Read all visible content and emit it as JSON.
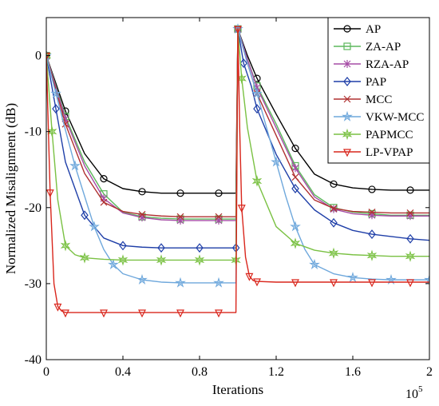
{
  "chart_data": {
    "type": "line",
    "title": "",
    "xlabel": "Iterations",
    "x_multiplier_label": "10",
    "x_multiplier_exponent": "5",
    "ylabel": "Normalized Misalignment (dB)",
    "xlim": [
      0,
      2
    ],
    "ylim": [
      -40,
      5
    ],
    "xticks": [
      0,
      0.4,
      0.8,
      1.2,
      1.6,
      2
    ],
    "xtick_labels": [
      "0",
      "0.4",
      "0.8",
      "1.2",
      "1.6",
      "2"
    ],
    "yticks": [
      0,
      -10,
      -20,
      -30,
      -40
    ],
    "ytick_labels": [
      "0",
      "-10",
      "-20",
      "-30",
      "-40"
    ],
    "grid": false,
    "legend_position": "top-right",
    "series": [
      {
        "name": "AP",
        "color": "#000000",
        "marker": "circle",
        "x": [
          0,
          0.1,
          0.2,
          0.3,
          0.4,
          0.5,
          0.6,
          0.7,
          0.8,
          0.9,
          0.99,
          1.0,
          1.05,
          1.1,
          1.2,
          1.3,
          1.4,
          1.5,
          1.6,
          1.7,
          1.8,
          1.9,
          2.0
        ],
        "y": [
          0,
          -7.3,
          -12.9,
          -16.2,
          -17.5,
          -17.9,
          -18.1,
          -18.1,
          -18.1,
          -18.1,
          -18.1,
          3.5,
          0,
          -3,
          -7.7,
          -12.2,
          -15.6,
          -16.9,
          -17.4,
          -17.6,
          -17.7,
          -17.7,
          -17.7
        ]
      },
      {
        "name": "ZA-AP",
        "color": "#5cb85c",
        "marker": "square",
        "x": [
          0,
          0.1,
          0.2,
          0.3,
          0.4,
          0.5,
          0.6,
          0.7,
          0.8,
          0.9,
          0.99,
          1.0,
          1.05,
          1.1,
          1.2,
          1.3,
          1.4,
          1.5,
          1.6,
          1.7,
          1.8,
          1.9,
          2.0
        ],
        "y": [
          0,
          -8,
          -14,
          -18.2,
          -20.6,
          -21.2,
          -21.4,
          -21.5,
          -21.5,
          -21.5,
          -21.5,
          3.5,
          -0.5,
          -4,
          -9,
          -14.5,
          -18.3,
          -20,
          -20.6,
          -20.8,
          -21,
          -21,
          -21
        ]
      },
      {
        "name": "RZA-AP",
        "color": "#a64ca6",
        "marker": "asterisk",
        "x": [
          0,
          0.1,
          0.2,
          0.3,
          0.4,
          0.5,
          0.6,
          0.7,
          0.8,
          0.9,
          0.99,
          1.0,
          1.05,
          1.1,
          1.2,
          1.3,
          1.4,
          1.5,
          1.6,
          1.7,
          1.8,
          1.9,
          2.0
        ],
        "y": [
          0,
          -8.3,
          -14.5,
          -18.8,
          -20.7,
          -21.3,
          -21.6,
          -21.7,
          -21.7,
          -21.7,
          -21.7,
          3.5,
          -0.5,
          -4.2,
          -9.5,
          -14.8,
          -18.6,
          -20.2,
          -20.8,
          -21,
          -21.1,
          -21.1,
          -21.1
        ]
      },
      {
        "name": "PAP",
        "color": "#1f3fa8",
        "marker": "diamond",
        "x": [
          0,
          0.05,
          0.1,
          0.2,
          0.3,
          0.4,
          0.5,
          0.6,
          0.7,
          0.8,
          0.9,
          0.99,
          1.0,
          1.03,
          1.07,
          1.1,
          1.2,
          1.3,
          1.4,
          1.5,
          1.6,
          1.7,
          1.8,
          1.9,
          2.0
        ],
        "y": [
          0,
          -7,
          -14,
          -21,
          -24,
          -25,
          -25.2,
          -25.3,
          -25.3,
          -25.3,
          -25.3,
          -25.3,
          3.5,
          -1,
          -4,
          -7,
          -13,
          -17.5,
          -20.3,
          -22,
          -23,
          -23.5,
          -23.8,
          -24.1,
          -24.3
        ]
      },
      {
        "name": "MCC",
        "color": "#b03030",
        "marker": "x",
        "x": [
          0,
          0.1,
          0.2,
          0.3,
          0.4,
          0.5,
          0.6,
          0.7,
          0.8,
          0.9,
          0.99,
          1.0,
          1.05,
          1.1,
          1.2,
          1.3,
          1.4,
          1.5,
          1.6,
          1.7,
          1.8,
          1.9,
          2.0
        ],
        "y": [
          0,
          -9,
          -15.5,
          -19.3,
          -20.5,
          -20.9,
          -21.1,
          -21.2,
          -21.2,
          -21.2,
          -21.2,
          3.5,
          -1,
          -5,
          -10.5,
          -16,
          -19,
          -20.1,
          -20.5,
          -20.6,
          -20.7,
          -20.7,
          -20.7
        ]
      },
      {
        "name": "VKW-MCC",
        "color": "#6fa8dc",
        "marker": "star",
        "x": [
          0,
          0.05,
          0.1,
          0.15,
          0.2,
          0.25,
          0.3,
          0.35,
          0.4,
          0.5,
          0.6,
          0.7,
          0.8,
          0.9,
          0.99,
          1.0,
          1.05,
          1.1,
          1.15,
          1.2,
          1.25,
          1.3,
          1.35,
          1.4,
          1.5,
          1.6,
          1.7,
          1.8,
          1.9,
          2.0
        ],
        "y": [
          0,
          -5,
          -9.8,
          -14.5,
          -18.5,
          -22.5,
          -25.5,
          -27.5,
          -28.7,
          -29.5,
          -29.8,
          -29.9,
          -29.9,
          -29.9,
          -29.9,
          3.5,
          -1,
          -5,
          -9.5,
          -14,
          -18.5,
          -22.5,
          -25.5,
          -27.5,
          -28.7,
          -29.2,
          -29.4,
          -29.5,
          -29.5,
          -29.5
        ]
      },
      {
        "name": "PAPMCC",
        "color": "#7ac143",
        "marker": "star6",
        "x": [
          0,
          0.03,
          0.06,
          0.1,
          0.15,
          0.2,
          0.3,
          0.4,
          0.5,
          0.6,
          0.7,
          0.8,
          0.9,
          0.99,
          1.0,
          1.02,
          1.05,
          1.1,
          1.2,
          1.3,
          1.4,
          1.5,
          1.6,
          1.7,
          1.8,
          1.9,
          2.0
        ],
        "y": [
          0,
          -10,
          -19,
          -25,
          -26.2,
          -26.6,
          -26.8,
          -26.9,
          -26.9,
          -26.9,
          -26.9,
          -26.9,
          -26.9,
          -26.9,
          3.5,
          -3,
          -9.5,
          -16.5,
          -22.5,
          -24.7,
          -25.6,
          -26,
          -26.2,
          -26.3,
          -26.4,
          -26.4,
          -26.4
        ]
      },
      {
        "name": "LP-VPAP",
        "color": "#d9261c",
        "marker": "triangle-down",
        "x": [
          0,
          0.02,
          0.04,
          0.06,
          0.08,
          0.1,
          0.2,
          0.3,
          0.4,
          0.5,
          0.6,
          0.7,
          0.8,
          0.9,
          0.99,
          1.0,
          1.01,
          1.02,
          1.04,
          1.06,
          1.08,
          1.1,
          1.2,
          1.3,
          1.4,
          1.5,
          1.6,
          1.7,
          1.8,
          1.9,
          2.0
        ],
        "y": [
          0,
          -18,
          -30,
          -33,
          -33.6,
          -33.8,
          -33.8,
          -33.8,
          -33.8,
          -33.8,
          -33.8,
          -33.8,
          -33.8,
          -33.8,
          -33.8,
          3.5,
          -10,
          -20,
          -26.5,
          -29,
          -29.6,
          -29.7,
          -29.8,
          -29.8,
          -29.8,
          -29.8,
          -29.8,
          -29.8,
          -29.8,
          -29.8,
          -29.8
        ]
      }
    ]
  }
}
